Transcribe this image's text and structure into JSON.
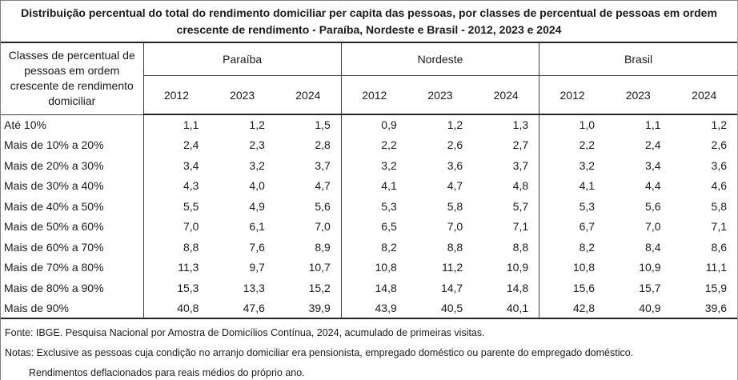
{
  "title": "Distribuição percentual do total do rendimento domiciliar per capita das pessoas, por classes de percentual de pessoas em ordem crescente de rendimento - Paraíba, Nordeste e Brasil - 2012, 2023 e 2024",
  "table": {
    "corner_header": "Classes de percentual de pessoas em ordem crescente de rendimento domiciliar",
    "groups": [
      "Paraíba",
      "Nordeste",
      "Brasil"
    ],
    "years": [
      "2012",
      "2023",
      "2024"
    ]
  },
  "chart_data": {
    "type": "table",
    "title": "Distribuição percentual do total do rendimento domiciliar per capita das pessoas, por classes de percentual de pessoas em ordem crescente de rendimento - Paraíba, Nordeste e Brasil - 2012, 2023 e 2024",
    "categories": [
      "Até 10%",
      "Mais de 10% a 20%",
      "Mais de 20% a 30%",
      "Mais de 30% a 40%",
      "Mais de 40% a 50%",
      "Mais de 50% a 60%",
      "Mais de 60% a 70%",
      "Mais de 70% a 80%",
      "Mais de 80% a 90%",
      "Mais de 90%"
    ],
    "unit": "%",
    "number_format": "pt-BR decimal comma, 1 decimal place",
    "series": [
      {
        "name": "Paraíba 2012",
        "values": [
          1.1,
          2.4,
          3.4,
          4.3,
          5.5,
          7.0,
          8.8,
          11.3,
          15.3,
          40.8
        ]
      },
      {
        "name": "Paraíba 2023",
        "values": [
          1.2,
          2.3,
          3.2,
          4.0,
          4.9,
          6.1,
          7.6,
          9.7,
          13.3,
          47.6
        ]
      },
      {
        "name": "Paraíba 2024",
        "values": [
          1.5,
          2.8,
          3.7,
          4.7,
          5.6,
          7.0,
          8.9,
          10.7,
          15.2,
          39.9
        ]
      },
      {
        "name": "Nordeste 2012",
        "values": [
          0.9,
          2.2,
          3.2,
          4.1,
          5.3,
          6.5,
          8.2,
          10.8,
          14.8,
          43.9
        ]
      },
      {
        "name": "Nordeste 2023",
        "values": [
          1.2,
          2.6,
          3.6,
          4.7,
          5.8,
          7.0,
          8.8,
          11.2,
          14.7,
          40.5
        ]
      },
      {
        "name": "Nordeste 2024",
        "values": [
          1.3,
          2.7,
          3.7,
          4.8,
          5.7,
          7.1,
          8.8,
          10.9,
          14.8,
          40.1
        ]
      },
      {
        "name": "Brasil 2012",
        "values": [
          1.0,
          2.2,
          3.2,
          4.1,
          5.3,
          6.7,
          8.2,
          10.8,
          15.6,
          42.8
        ]
      },
      {
        "name": "Brasil 2023",
        "values": [
          1.1,
          2.4,
          3.4,
          4.4,
          5.6,
          7.0,
          8.4,
          10.9,
          15.7,
          40.9
        ]
      },
      {
        "name": "Brasil 2024",
        "values": [
          1.2,
          2.6,
          3.6,
          4.6,
          5.8,
          7.1,
          8.6,
          11.1,
          15.9,
          39.6
        ]
      }
    ]
  },
  "notes": {
    "fonte": "Fonte: IBGE. Pesquisa Nacional por Amostra de Domicílios Contínua, 2024, acumulado de primeiras visitas.",
    "nota1": "Notas: Exclusive as pessoas cuja condição no arranjo domiciliar era pensionista, empregado doméstico ou parente do empregado doméstico.",
    "nota2": "Rendimentos deflacionados para reais médios do próprio ano."
  },
  "colors": {
    "background": "#ffffff",
    "text": "#1a1a1a",
    "border_thick": "#262626",
    "border_thin": "#404040"
  }
}
